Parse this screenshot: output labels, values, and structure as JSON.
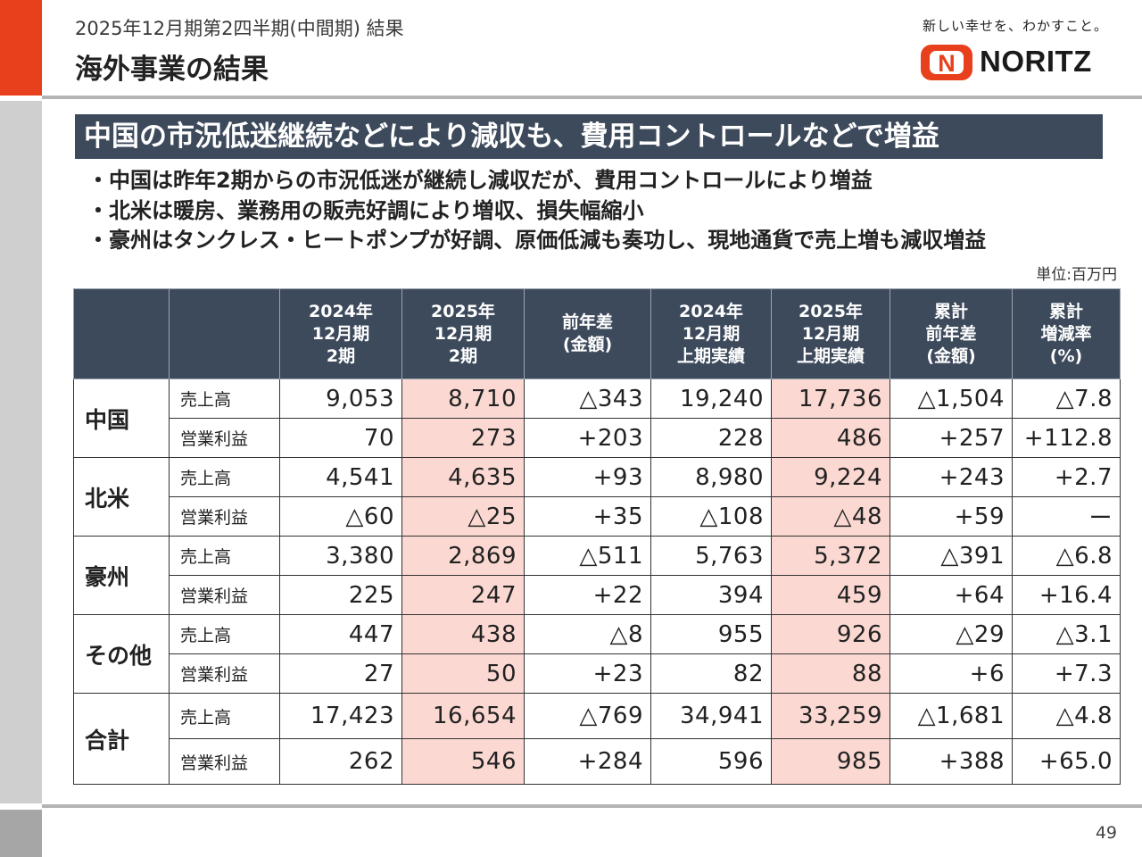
{
  "header": {
    "subtitle": "2025年12月期第2四半期(中間期) 結果",
    "title": "海外事業の結果",
    "slogan": "新しい幸せを、わかすこと。",
    "logo_text": "NORITZ",
    "logo_mark": "N"
  },
  "headline": "中国の市況低迷継続などにより減収も、費用コントロールなどで増益",
  "bullets": [
    "中国は昨年2期からの市況低迷が継続し減収だが、費用コントロールにより増益",
    "北米は暖房、業務用の販売好調により増収、損失幅縮小",
    "豪州はタンクレス・ヒートポンプが好調、原価低減も奏功し、現地通貨で売上増も減収増益"
  ],
  "unit": "単位:百万円",
  "table": {
    "columns": [
      [
        "2024年",
        "12月期",
        "2期"
      ],
      [
        "2025年",
        "12月期",
        "2期"
      ],
      [
        "前年差",
        "(金額)"
      ],
      [
        "2024年",
        "12月期",
        "上期実績"
      ],
      [
        "2025年",
        "12月期",
        "上期実績"
      ],
      [
        "累計",
        "前年差",
        "(金額)"
      ],
      [
        "累計",
        "増減率",
        "(%)"
      ]
    ],
    "regions": [
      {
        "name": "中国",
        "rows": [
          {
            "metric": "売上高",
            "values": [
              "9,053",
              "8,710",
              "△343",
              "19,240",
              "17,736",
              "△1,504",
              "△7.8"
            ]
          },
          {
            "metric": "営業利益",
            "values": [
              "70",
              "273",
              "+203",
              "228",
              "486",
              "+257",
              "+112.8"
            ]
          }
        ]
      },
      {
        "name": "北米",
        "rows": [
          {
            "metric": "売上高",
            "values": [
              "4,541",
              "4,635",
              "+93",
              "8,980",
              "9,224",
              "+243",
              "+2.7"
            ]
          },
          {
            "metric": "営業利益",
            "values": [
              "△60",
              "△25",
              "+35",
              "△108",
              "△48",
              "+59",
              "ー"
            ]
          }
        ]
      },
      {
        "name": "豪州",
        "rows": [
          {
            "metric": "売上高",
            "values": [
              "3,380",
              "2,869",
              "△511",
              "5,763",
              "5,372",
              "△391",
              "△6.8"
            ]
          },
          {
            "metric": "営業利益",
            "values": [
              "225",
              "247",
              "+22",
              "394",
              "459",
              "+64",
              "+16.4"
            ]
          }
        ]
      },
      {
        "name": "その他",
        "rows": [
          {
            "metric": "売上高",
            "values": [
              "447",
              "438",
              "△8",
              "955",
              "926",
              "△29",
              "△3.1"
            ]
          },
          {
            "metric": "営業利益",
            "values": [
              "27",
              "50",
              "+23",
              "82",
              "88",
              "+6",
              "+7.3"
            ]
          }
        ]
      },
      {
        "name": "合計",
        "rows": [
          {
            "metric": "売上高",
            "values": [
              "17,423",
              "16,654",
              "△769",
              "34,941",
              "33,259",
              "△1,681",
              "△4.8"
            ]
          },
          {
            "metric": "営業利益",
            "values": [
              "262",
              "546",
              "+284",
              "596",
              "985",
              "+388",
              "+65.0"
            ]
          }
        ]
      }
    ]
  },
  "page_number": "49",
  "colors": {
    "accent": "#e8401c",
    "header_fill": "#3d4a5c",
    "highlight": "#fbd9d2"
  }
}
